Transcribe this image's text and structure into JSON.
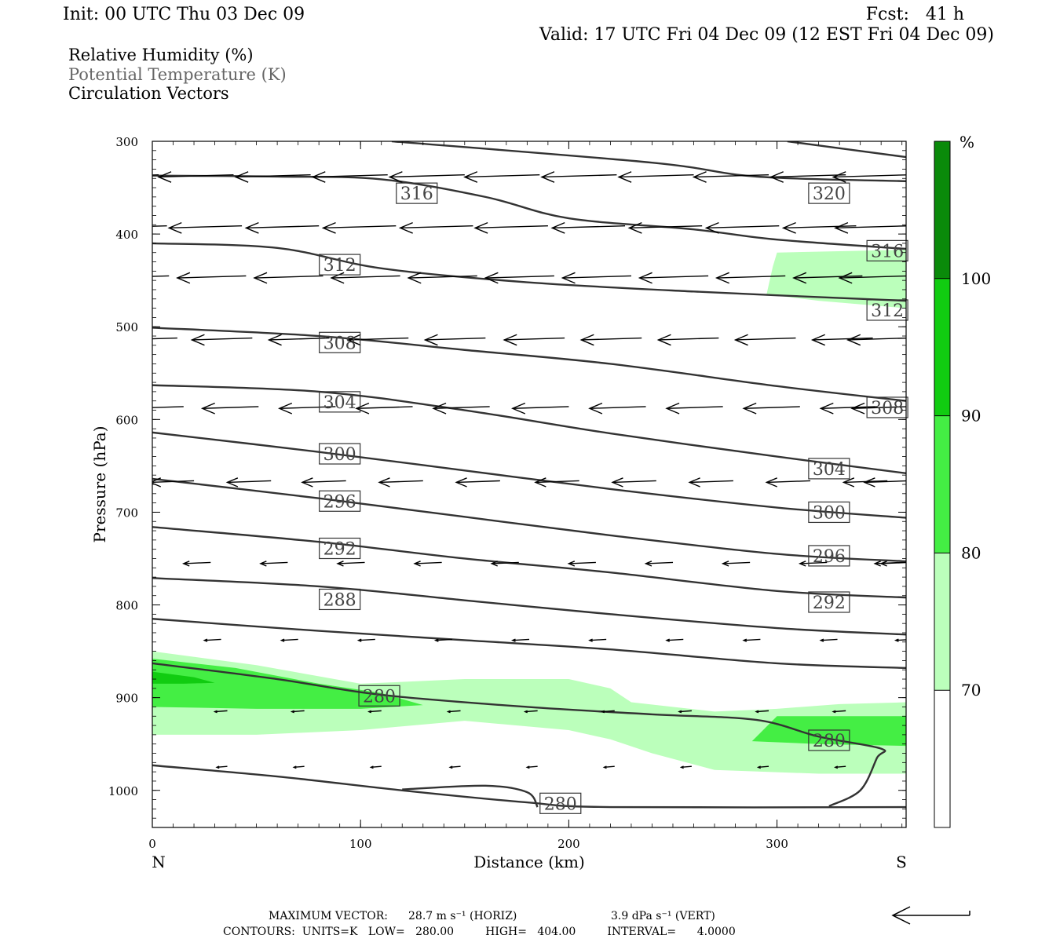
{
  "header": {
    "init": "Init: 00 UTC Thu 03 Dec 09",
    "fcst": "Fcst:   41 h",
    "valid": "Valid: 17 UTC Fri 04 Dec 09 (12 EST Fri 04 Dec 09)",
    "legend_lines": [
      {
        "text": "Relative Humidity (%)",
        "color": "#000000"
      },
      {
        "text": "Potential Temperature (K)",
        "color": "#666666"
      },
      {
        "text": "Circulation Vectors",
        "color": "#000000"
      }
    ]
  },
  "chart_data": {
    "type": "cross-section",
    "xlabel": "Distance (km)",
    "ylabel": "Pressure (hPa)",
    "x_ticks": [
      0,
      100,
      200,
      300
    ],
    "x_end_labels": {
      "left": "N",
      "right": "S"
    },
    "xlim": [
      0,
      362
    ],
    "y_ticks": [
      300,
      400,
      500,
      600,
      700,
      800,
      900,
      1000
    ],
    "ylim": [
      300,
      1040
    ],
    "colorbar": {
      "unit": "%",
      "levels": [
        70,
        80,
        90,
        100
      ],
      "colors": [
        "#ffffff",
        "#bbffbb",
        "#44ee44",
        "#11cc11",
        "#0a8a0a"
      ]
    },
    "theta_lines": [
      {
        "pts": [
          [
            115,
            300
          ],
          [
            240,
            323
          ],
          [
            290,
            338
          ],
          [
            362,
            343
          ]
        ]
      },
      {
        "pts": [
          [
            305,
            300
          ],
          [
            362,
            317
          ]
        ]
      },
      {
        "pts": [
          [
            0,
            337
          ],
          [
            60,
            338
          ],
          [
            110,
            341
          ],
          [
            160,
            360
          ],
          [
            200,
            383
          ],
          [
            260,
            395
          ],
          [
            300,
            406
          ],
          [
            362,
            416
          ]
        ]
      },
      {
        "pts": [
          [
            0,
            410
          ],
          [
            60,
            415
          ],
          [
            110,
            437
          ],
          [
            180,
            452
          ],
          [
            260,
            462
          ],
          [
            362,
            472
          ]
        ]
      },
      {
        "pts": [
          [
            0,
            501
          ],
          [
            80,
            510
          ],
          [
            150,
            525
          ],
          [
            220,
            540
          ],
          [
            300,
            564
          ],
          [
            362,
            580
          ]
        ]
      },
      {
        "pts": [
          [
            0,
            563
          ],
          [
            80,
            570
          ],
          [
            150,
            590
          ],
          [
            220,
            615
          ],
          [
            300,
            640
          ],
          [
            362,
            658
          ]
        ]
      },
      {
        "pts": [
          [
            0,
            614
          ],
          [
            80,
            635
          ],
          [
            150,
            655
          ],
          [
            220,
            675
          ],
          [
            300,
            695
          ],
          [
            362,
            706
          ]
        ]
      },
      {
        "pts": [
          [
            0,
            664
          ],
          [
            80,
            685
          ],
          [
            150,
            705
          ],
          [
            220,
            725
          ],
          [
            300,
            745
          ],
          [
            362,
            753
          ]
        ]
      },
      {
        "pts": [
          [
            0,
            716
          ],
          [
            80,
            732
          ],
          [
            150,
            750
          ],
          [
            220,
            765
          ],
          [
            300,
            785
          ],
          [
            362,
            792
          ]
        ]
      },
      {
        "pts": [
          [
            0,
            771
          ],
          [
            80,
            780
          ],
          [
            150,
            795
          ],
          [
            220,
            810
          ],
          [
            300,
            825
          ],
          [
            362,
            832
          ]
        ]
      },
      {
        "pts": [
          [
            0,
            815
          ],
          [
            80,
            828
          ],
          [
            150,
            838
          ],
          [
            220,
            848
          ],
          [
            300,
            863
          ],
          [
            362,
            868
          ]
        ]
      },
      {
        "pts": [
          [
            0,
            863
          ],
          [
            60,
            880
          ],
          [
            110,
            897
          ],
          [
            180,
            910
          ],
          [
            240,
            918
          ],
          [
            290,
            924
          ],
          [
            320,
            942
          ],
          [
            350,
            955
          ],
          [
            348,
            965
          ],
          [
            340,
            1000
          ],
          [
            325,
            1017
          ]
        ]
      },
      {
        "pts": [
          [
            0,
            973
          ],
          [
            60,
            985
          ],
          [
            120,
            1000
          ],
          [
            180,
            1013
          ],
          [
            220,
            1018
          ],
          [
            362,
            1018
          ]
        ]
      },
      {
        "pts": [
          [
            120,
            999
          ],
          [
            160,
            995
          ],
          [
            180,
            1002
          ],
          [
            185,
            1018
          ]
        ]
      }
    ],
    "theta_labels": [
      {
        "text": "316",
        "x": 127,
        "p": 356
      },
      {
        "text": "320",
        "x": 325,
        "p": 356
      },
      {
        "text": "312",
        "x": 90,
        "p": 433
      },
      {
        "text": "316",
        "x": 353,
        "p": 418
      },
      {
        "text": "312",
        "x": 353,
        "p": 482
      },
      {
        "text": "308",
        "x": 90,
        "p": 517
      },
      {
        "text": "304",
        "x": 90,
        "p": 581
      },
      {
        "text": "308",
        "x": 353,
        "p": 587
      },
      {
        "text": "300",
        "x": 90,
        "p": 637
      },
      {
        "text": "304",
        "x": 325,
        "p": 653
      },
      {
        "text": "296",
        "x": 90,
        "p": 688
      },
      {
        "text": "300",
        "x": 325,
        "p": 700
      },
      {
        "text": "292",
        "x": 90,
        "p": 739
      },
      {
        "text": "296",
        "x": 325,
        "p": 747
      },
      {
        "text": "288",
        "x": 90,
        "p": 794
      },
      {
        "text": "292",
        "x": 325,
        "p": 797
      },
      {
        "text": "280",
        "x": 109,
        "p": 898
      },
      {
        "text": "280",
        "x": 325,
        "p": 946
      },
      {
        "text": "280",
        "x": 196,
        "p": 1014
      }
    ],
    "rh_regions": [
      {
        "level": 70,
        "pts": [
          [
            0,
            850
          ],
          [
            50,
            865
          ],
          [
            100,
            885
          ],
          [
            150,
            880
          ],
          [
            200,
            880
          ],
          [
            220,
            890
          ],
          [
            230,
            905
          ],
          [
            270,
            915
          ],
          [
            300,
            912
          ],
          [
            330,
            907
          ],
          [
            362,
            905
          ],
          [
            362,
            982
          ],
          [
            320,
            982
          ],
          [
            270,
            978
          ],
          [
            240,
            960
          ],
          [
            220,
            945
          ],
          [
            200,
            935
          ],
          [
            150,
            925
          ],
          [
            100,
            935
          ],
          [
            50,
            940
          ],
          [
            0,
            940
          ]
        ]
      },
      {
        "level": 80,
        "pts": [
          [
            0,
            858
          ],
          [
            40,
            868
          ],
          [
            80,
            885
          ],
          [
            110,
            895
          ],
          [
            130,
            908
          ],
          [
            100,
            912
          ],
          [
            50,
            912
          ],
          [
            0,
            910
          ]
        ]
      },
      {
        "level": 80,
        "pts": [
          [
            300,
            920
          ],
          [
            362,
            920
          ],
          [
            362,
            952
          ],
          [
            320,
            950
          ],
          [
            288,
            947
          ]
        ]
      },
      {
        "level": 90,
        "pts": [
          [
            0,
            872
          ],
          [
            20,
            878
          ],
          [
            30,
            884
          ],
          [
            15,
            885
          ],
          [
            0,
            885
          ]
        ]
      },
      {
        "level": 70,
        "pts": [
          [
            300,
            420
          ],
          [
            362,
            417
          ],
          [
            362,
            480
          ],
          [
            320,
            472
          ],
          [
            295,
            465
          ],
          [
            298,
            435
          ]
        ]
      }
    ],
    "vector_rows": [
      {
        "p": 337,
        "xs": [
          0,
          36,
          73,
          110,
          147,
          183,
          220,
          257,
          293,
          330,
          360
        ],
        "dx": -33
      },
      {
        "p": 392,
        "xs": [
          4,
          40,
          77,
          114,
          151,
          187,
          224,
          261,
          298,
          335,
          360
        ],
        "dx": -32
      },
      {
        "p": 446,
        "xs": [
          5,
          42,
          79,
          116,
          153,
          190,
          227,
          264,
          301,
          338,
          360
        ],
        "dx": -30
      },
      {
        "p": 513,
        "xs": [
          9,
          45,
          82,
          120,
          157,
          195,
          232,
          269,
          306,
          343,
          360
        ],
        "dx": -26
      },
      {
        "p": 587,
        "xs": [
          12,
          48,
          85,
          122,
          159,
          197,
          234,
          271,
          308,
          345,
          360
        ],
        "dx": -24
      },
      {
        "p": 667,
        "xs": [
          17,
          54,
          90,
          127,
          164,
          202,
          239,
          276,
          313,
          350,
          360
        ],
        "dx": -18
      },
      {
        "p": 755,
        "xs": [
          25,
          62,
          99,
          136,
          173,
          210,
          247,
          284,
          321,
          357,
          360
        ],
        "dx": -10
      },
      {
        "p": 838,
        "xs": [
          30,
          67,
          104,
          141,
          178,
          215,
          252,
          289,
          326,
          362
        ],
        "dx": -5
      },
      {
        "p": 915,
        "xs": [
          33,
          70,
          107,
          145,
          182,
          219,
          256,
          293,
          330
        ],
        "dx": -3
      },
      {
        "p": 975,
        "xs": [
          33,
          70,
          107,
          145,
          182,
          219,
          256,
          293,
          330
        ],
        "dx": -2
      }
    ]
  },
  "footer": {
    "max_vector_prefix": "MAXIMUM VECTOR:",
    "max_vector_horiz": "28.7 m s⁻¹ (HORIZ)",
    "max_vector_vert": "3.9 dPa s⁻¹ (VERT)",
    "contours": "CONTOURS:  UNITS=K   LOW=   280.00         HIGH=   404.00         INTERVAL=      4.0000"
  }
}
